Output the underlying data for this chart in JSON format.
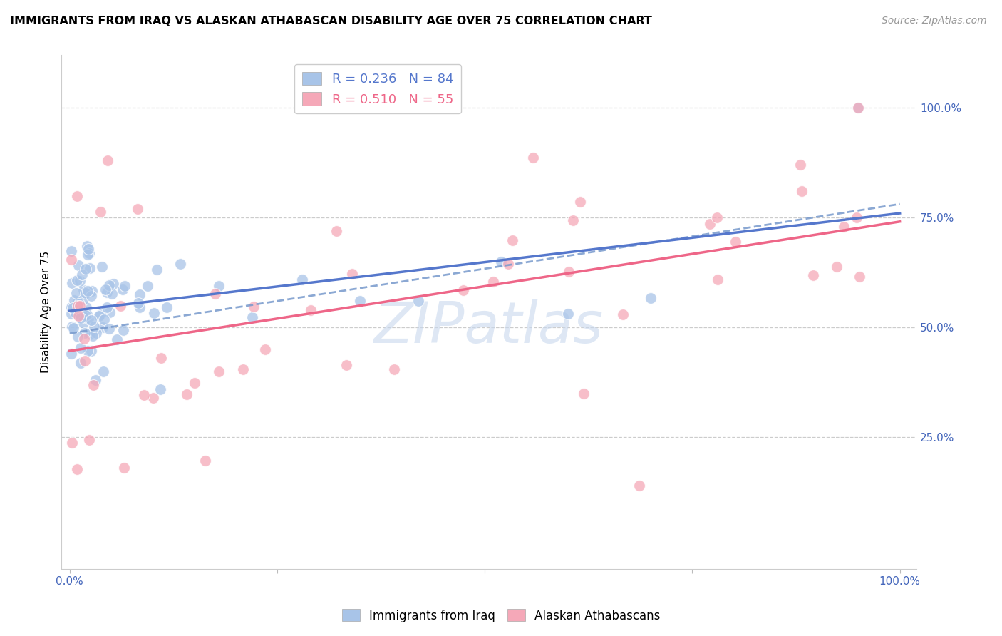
{
  "title": "IMMIGRANTS FROM IRAQ VS ALASKAN ATHABASCAN DISABILITY AGE OVER 75 CORRELATION CHART",
  "source": "Source: ZipAtlas.com",
  "ylabel": "Disability Age Over 75",
  "legend_label1": "Immigrants from Iraq",
  "legend_label2": "Alaskan Athabascans",
  "R1": 0.236,
  "N1": 84,
  "R2": 0.51,
  "N2": 55,
  "color1": "#A8C4E8",
  "color2": "#F5A8B8",
  "line_color1": "#5577CC",
  "line_color2": "#EE6688",
  "line_color_dash": "#7799CC",
  "watermark_color": "#C8D8EE",
  "axis_label_color": "#4466BB",
  "title_fontsize": 11.5,
  "source_fontsize": 10,
  "tick_fontsize": 11,
  "ylabel_fontsize": 11,
  "legend_fontsize": 13
}
